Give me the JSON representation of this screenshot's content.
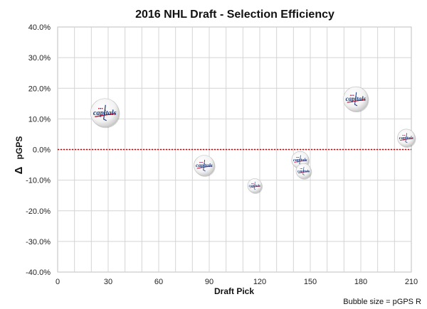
{
  "chart_data": {
    "type": "scatter",
    "subtype": "bubble",
    "title": "2016 NHL Draft - Selection Efficiency",
    "xlabel": "Draft Pick",
    "ylabel_symbol": "Δ",
    "ylabel": "pGPS",
    "note": "Bubble size = pGPS R",
    "xlim": [
      0,
      210
    ],
    "ylim": [
      -40,
      40
    ],
    "x_ticks": [
      0,
      30,
      60,
      90,
      120,
      150,
      180,
      210
    ],
    "y_ticks": [
      "40.0%",
      "30.0%",
      "20.0%",
      "10.0%",
      "0.0%",
      "-10.0%",
      "-20.0%",
      "-30.0%",
      "-40.0%"
    ],
    "y_tick_values": [
      40,
      30,
      20,
      10,
      0,
      -10,
      -20,
      -30,
      -40
    ],
    "grid": true,
    "reference_line": {
      "y": 0,
      "color": "#c00000",
      "style": "dotted"
    },
    "marker_icon": "capitals-logo",
    "marker_text": "capitals",
    "points": [
      {
        "x": 28,
        "y": 12.0,
        "size": 1.0
      },
      {
        "x": 87,
        "y": -5.2,
        "size": 0.52
      },
      {
        "x": 117,
        "y": -11.8,
        "size": 0.25
      },
      {
        "x": 144,
        "y": -3.4,
        "size": 0.36
      },
      {
        "x": 146,
        "y": -7.0,
        "size": 0.28
      },
      {
        "x": 177,
        "y": 16.5,
        "size": 0.75
      },
      {
        "x": 207,
        "y": 3.8,
        "size": 0.38
      }
    ]
  }
}
